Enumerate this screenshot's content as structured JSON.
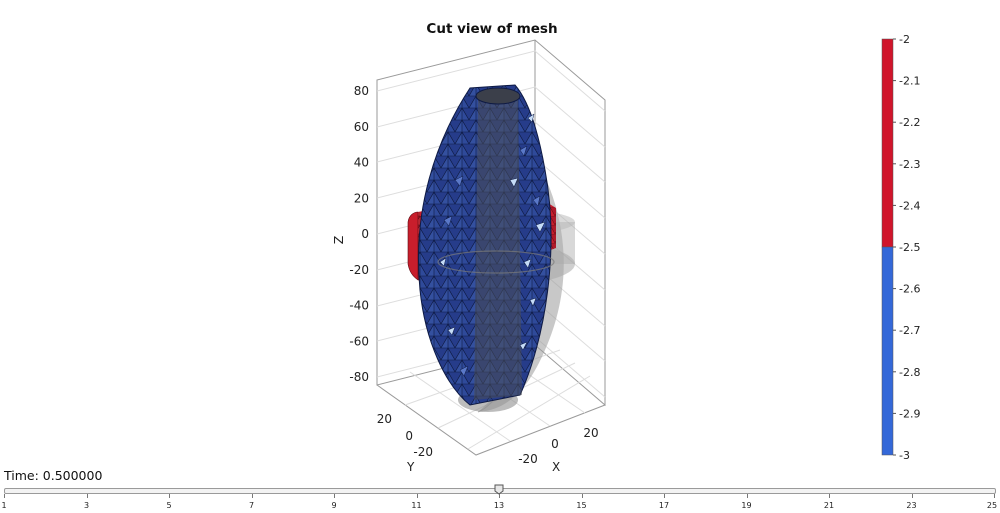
{
  "chart_data": {
    "type": "3d-mesh",
    "title": "Cut view of mesh",
    "zlabel": "Z",
    "xlabel": "X",
    "ylabel": "Y",
    "z_ticks": [
      80,
      60,
      40,
      20,
      0,
      -20,
      -40,
      -60,
      -80
    ],
    "y_ticks": [
      20,
      0,
      -20
    ],
    "x_ticks": [
      -20,
      0,
      20
    ],
    "colorbar": {
      "ticks": [
        "-2",
        "-2.1",
        "-2.2",
        "-2.3",
        "-2.4",
        "-2.5",
        "-2.6",
        "-2.7",
        "-2.8",
        "-2.9",
        "-3"
      ],
      "range": [
        -3,
        -2
      ],
      "split_value": -2.5,
      "colors": {
        "upper": "#d0152b",
        "lower": "#3468d8"
      }
    },
    "colors": {
      "mesh_blue": "#2b4394",
      "mesh_light": "#c6dcf7",
      "mesh_red": "#c81e2c",
      "ghost": "#9a9a9a"
    }
  },
  "controls": {
    "time_label": "Time: 0.500000",
    "time_value": 13,
    "slider_range": [
      1,
      25
    ],
    "slider_ticks": [
      "1",
      "3",
      "5",
      "7",
      "9",
      "11",
      "13",
      "15",
      "17",
      "19",
      "21",
      "23",
      "25"
    ]
  }
}
